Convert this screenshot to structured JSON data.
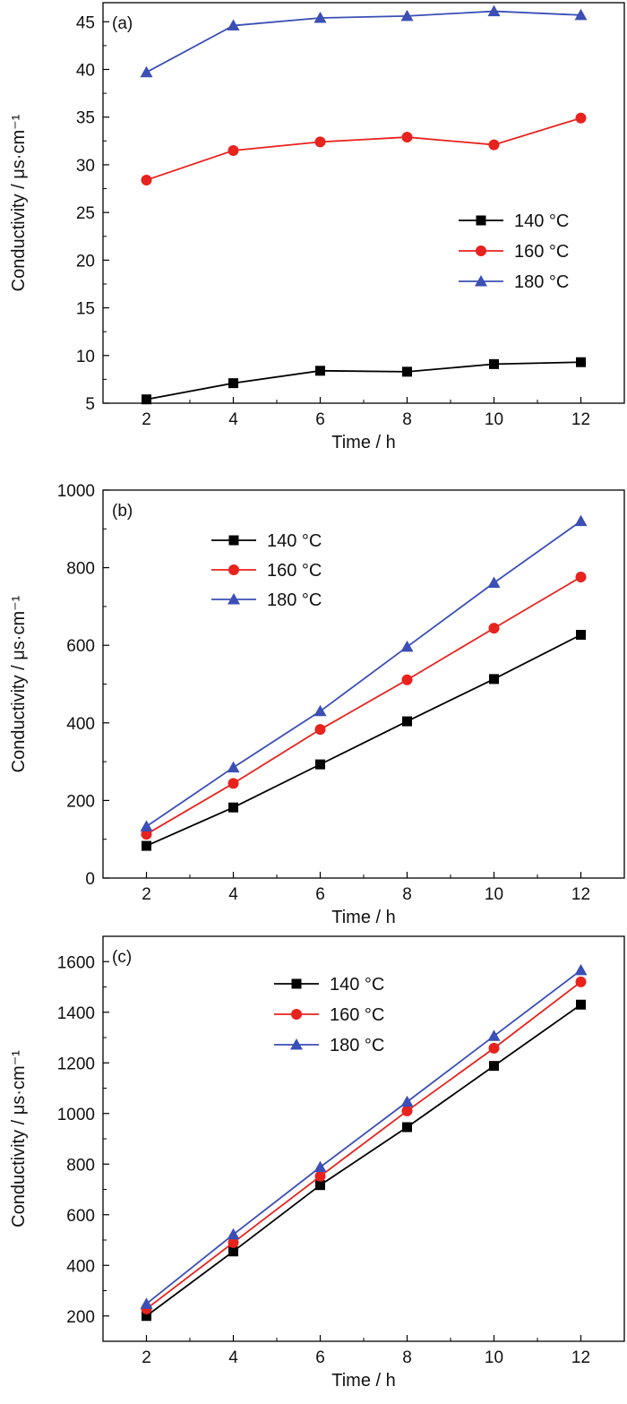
{
  "chart_data": [
    {
      "type": "line",
      "panel_label": "(a)",
      "xlabel": "Time / h",
      "ylabel": "Conductivity / μs·cm⁻¹",
      "x": [
        2,
        4,
        6,
        8,
        10,
        12
      ],
      "xlim": [
        1,
        13
      ],
      "ylim": [
        5,
        47
      ],
      "xticks": [
        "2",
        "4",
        "6",
        "8",
        "10",
        "12"
      ],
      "yticks": [
        "5",
        "10",
        "15",
        "20",
        "25",
        "30",
        "35",
        "40",
        "45"
      ],
      "legend_position": "center-right",
      "series": [
        {
          "name": "140 °C",
          "color": "#000000",
          "marker": "square",
          "values": [
            5.4,
            7.1,
            8.4,
            8.3,
            9.1,
            9.3
          ]
        },
        {
          "name": "160 °C",
          "color": "#e8221d",
          "marker": "circle",
          "values": [
            28.4,
            31.5,
            32.4,
            32.9,
            32.1,
            34.9
          ]
        },
        {
          "name": "180 °C",
          "color": "#3b4fb5",
          "marker": "triangle",
          "values": [
            39.7,
            44.6,
            45.4,
            45.6,
            46.1,
            45.7
          ]
        }
      ]
    },
    {
      "type": "line",
      "panel_label": "(b)",
      "xlabel": "Time / h",
      "ylabel": "Conductivity / μs·cm⁻¹",
      "x": [
        2,
        4,
        6,
        8,
        10,
        12
      ],
      "xlim": [
        1,
        13
      ],
      "ylim": [
        0,
        1000
      ],
      "xticks": [
        "2",
        "4",
        "6",
        "8",
        "10",
        "12"
      ],
      "yticks": [
        "0",
        "200",
        "400",
        "600",
        "800",
        "1000"
      ],
      "legend_position": "top-left",
      "series": [
        {
          "name": "140 °C",
          "color": "#000000",
          "marker": "square",
          "values": [
            83,
            182,
            293,
            404,
            513,
            627
          ]
        },
        {
          "name": "160 °C",
          "color": "#e8221d",
          "marker": "circle",
          "values": [
            113,
            244,
            383,
            511,
            644,
            776
          ]
        },
        {
          "name": "180 °C",
          "color": "#3b4fb5",
          "marker": "triangle",
          "values": [
            133,
            285,
            430,
            596,
            761,
            920
          ]
        }
      ]
    },
    {
      "type": "line",
      "panel_label": "(c)",
      "xlabel": "Time / h",
      "ylabel": "Conductivity / μs·cm⁻¹",
      "x": [
        2,
        4,
        6,
        8,
        10,
        12
      ],
      "xlim": [
        1,
        13
      ],
      "ylim": [
        100,
        1700
      ],
      "xticks": [
        "2",
        "4",
        "6",
        "8",
        "10",
        "12"
      ],
      "yticks": [
        "200",
        "400",
        "600",
        "800",
        "1000",
        "1200",
        "1400",
        "1600"
      ],
      "legend_position": "top-left",
      "series": [
        {
          "name": "140 °C",
          "color": "#000000",
          "marker": "square",
          "values": [
            200,
            455,
            717,
            946,
            1188,
            1430
          ]
        },
        {
          "name": "160 °C",
          "color": "#e8221d",
          "marker": "circle",
          "values": [
            228,
            490,
            752,
            1010,
            1258,
            1520
          ]
        },
        {
          "name": "180 °C",
          "color": "#3b4fb5",
          "marker": "triangle",
          "values": [
            248,
            522,
            788,
            1046,
            1306,
            1566
          ]
        }
      ]
    }
  ]
}
